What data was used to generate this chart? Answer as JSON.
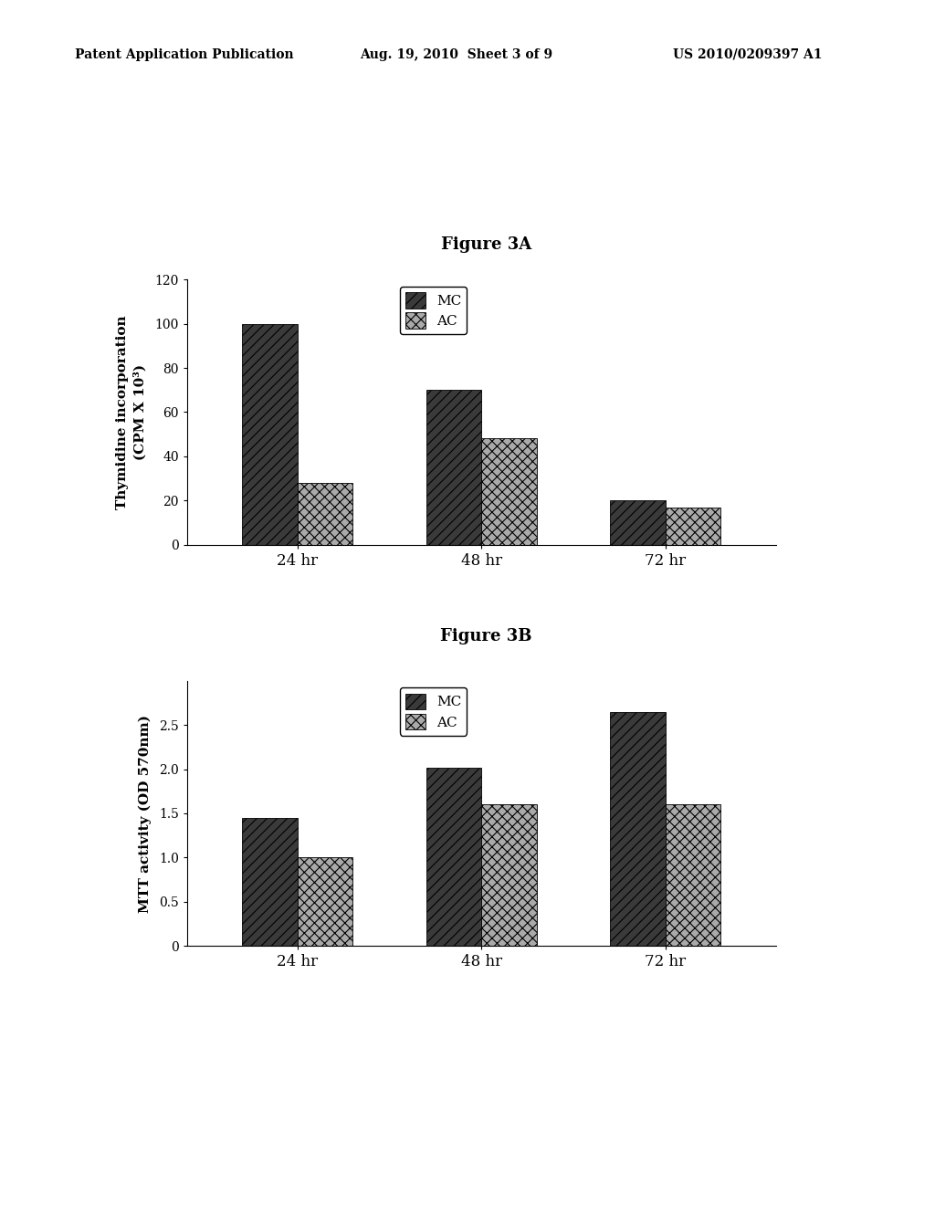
{
  "header_left": "Patent Application Publication",
  "header_mid": "Aug. 19, 2010  Sheet 3 of 9",
  "header_right": "US 2010/0209397 A1",
  "fig3A_title": "Figure 3A",
  "fig3A_ylabel_line1": "Thymidine incorporation",
  "fig3A_ylabel_line2": "(CPM X 10³)",
  "fig3A_xlabel_ticks": [
    "24 hr",
    "48 hr",
    "72 hr"
  ],
  "fig3A_MC": [
    100,
    70,
    20
  ],
  "fig3A_AC": [
    28,
    48,
    17
  ],
  "fig3A_ylim": [
    0,
    120
  ],
  "fig3A_yticks": [
    0,
    20,
    40,
    60,
    80,
    100,
    120
  ],
  "fig3A_legend": [
    "MC",
    "AC"
  ],
  "fig3B_title": "Figure 3B",
  "fig3B_ylabel": "MTT activity (OD 570nm)",
  "fig3B_xlabel_ticks": [
    "24 hr",
    "48 hr",
    "72 hr"
  ],
  "fig3B_MC": [
    1.45,
    2.02,
    2.65
  ],
  "fig3B_AC": [
    1.0,
    1.6,
    1.6
  ],
  "fig3B_ylim": [
    0,
    3.0
  ],
  "fig3B_yticks": [
    0,
    0.5,
    1.0,
    1.5,
    2.0,
    2.5
  ],
  "fig3B_legend": [
    "MC",
    "AC"
  ],
  "bar_width": 0.3,
  "mc_color": "#3a3a3a",
  "ac_color": "#aaaaaa",
  "background_color": "#ffffff",
  "font_family": "serif"
}
